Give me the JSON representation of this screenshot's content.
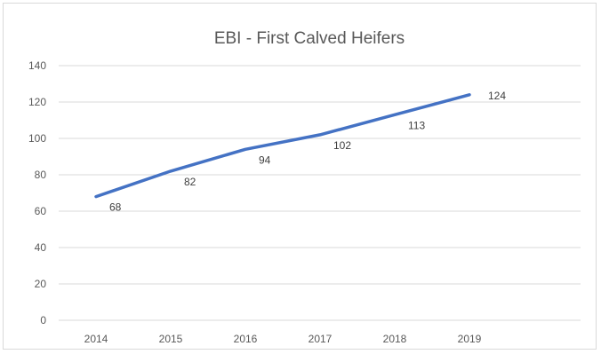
{
  "chart_data": {
    "type": "line",
    "title": "EBI - First Calved Heifers",
    "xlabel": "",
    "ylabel": "",
    "categories": [
      "2014",
      "2015",
      "2016",
      "2017",
      "2018",
      "2019"
    ],
    "series": [
      {
        "values": [
          68,
          82,
          94,
          102,
          113,
          124
        ],
        "color": "#4472c4"
      }
    ],
    "ylim": [
      0,
      140
    ],
    "yticks": [
      0,
      20,
      40,
      60,
      80,
      100,
      120,
      140
    ],
    "grid": true,
    "legend": "none",
    "data_labels": true
  }
}
